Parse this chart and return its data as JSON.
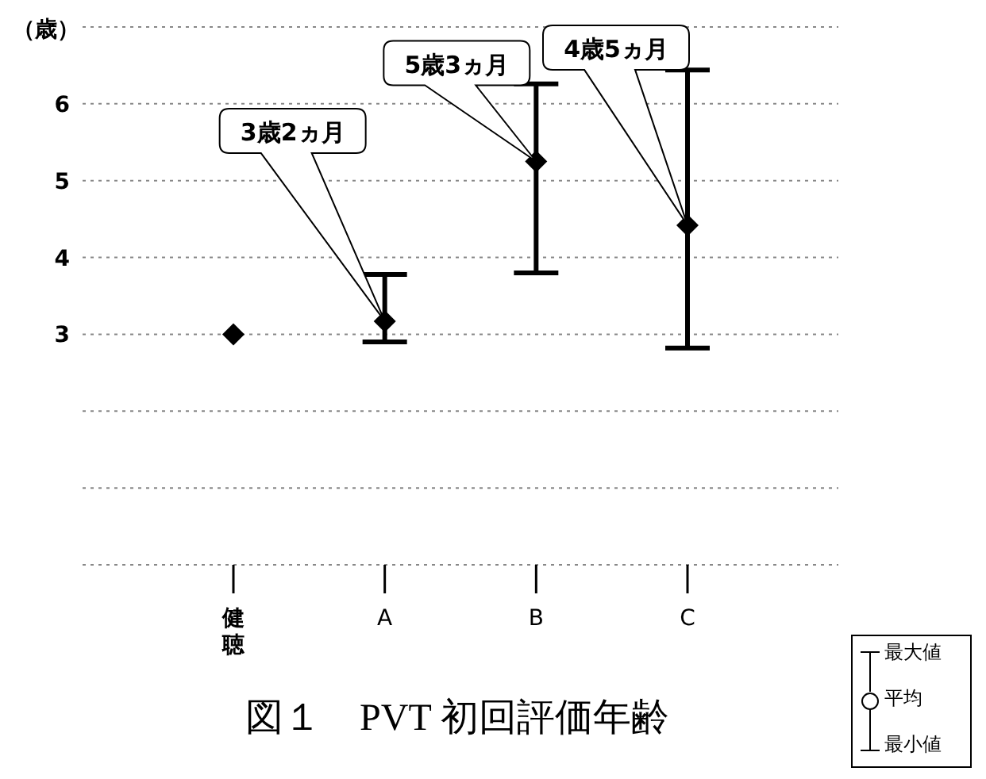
{
  "chart_data": {
    "type": "scatter",
    "title": "図１　PVT 初回評価年齢",
    "ylabel": "（歳）",
    "categories": [
      "健聴",
      "A",
      "B",
      "C"
    ],
    "series": [
      {
        "color": "#000000",
        "values": [
          3.0,
          3.17,
          5.25,
          4.42
        ],
        "errors": [
          null,
          [
            2.9,
            3.78
          ],
          [
            3.8,
            6.26
          ],
          [
            2.82,
            6.44
          ]
        ]
      }
    ],
    "ylim": [
      0,
      7
    ],
    "yticks": [
      {
        "value": 0,
        "label": null
      },
      {
        "value": 1,
        "label": null
      },
      {
        "value": 2,
        "label": null
      },
      3,
      4,
      5,
      6,
      {
        "value": 7,
        "label": null
      }
    ],
    "grid": "y",
    "legend": false,
    "marker": "diamond",
    "annotations": [
      "3歳2ヵ月",
      "5歳3ヵ月",
      "4歳5ヵ月",
      "最大値",
      "平均",
      "最小値"
    ]
  }
}
